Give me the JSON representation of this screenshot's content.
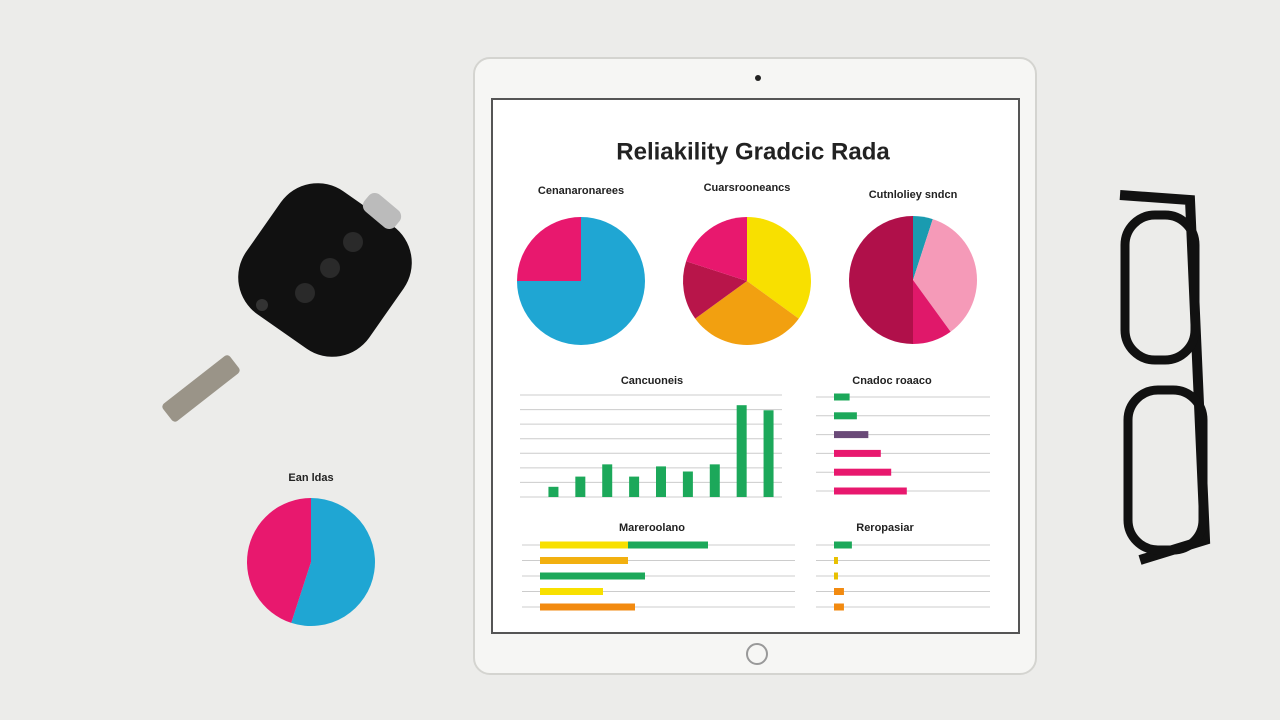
{
  "title": "Reliakility Gradcic Rada",
  "chart_data": [
    {
      "type": "pie",
      "title": "Cenanaronarees",
      "values": [
        75,
        25
      ],
      "colors": [
        "#1fa6d3",
        "#e8186e"
      ]
    },
    {
      "type": "pie",
      "title": "Cuarsrooneancs",
      "values": [
        35,
        30,
        15,
        20
      ],
      "colors": [
        "#f8e000",
        "#f2a010",
        "#b8154a",
        "#e8186e"
      ]
    },
    {
      "type": "pie",
      "title": "Cutnloliey sndcn",
      "values": [
        5,
        35,
        10,
        50
      ],
      "colors": [
        "#1a9bb0",
        "#f59ab8",
        "#e0186a",
        "#b0104a"
      ]
    },
    {
      "type": "bar",
      "title": "Cancuoneis",
      "values": [
        10,
        20,
        32,
        20,
        30,
        25,
        32,
        90,
        85
      ],
      "color": "#1ca85a",
      "ylim": [
        0,
        100
      ],
      "grid": true
    },
    {
      "type": "hbar",
      "title": "Cnadoc roaaco",
      "values": [
        15,
        22,
        33,
        45,
        55,
        70
      ],
      "colors": [
        "#1ca85a",
        "#1ca85a",
        "#6a4a78",
        "#e8186e",
        "#e8186e",
        "#e8186e"
      ],
      "xlim": [
        0,
        150
      ],
      "grid": true
    },
    {
      "type": "hbar",
      "title": "Mareroolano",
      "series": [
        {
          "values": [
            88,
            88,
            105,
            63,
            95
          ],
          "colors": [
            "#f8e000",
            "#f2b010",
            "#1ca85a",
            "#f8e000",
            "#f28a10"
          ]
        },
        {
          "values": [
            80,
            null,
            null,
            null,
            null
          ],
          "colors": [
            "#1ca85a",
            null,
            null,
            null,
            null
          ]
        }
      ],
      "xlim": [
        0,
        255
      ],
      "grid": true
    },
    {
      "type": "hbar",
      "title": "Reropasiar",
      "values": [
        18,
        4,
        4,
        10,
        10
      ],
      "colors": [
        "#1ca85a",
        "#e8c000",
        "#e8c000",
        "#f28a10",
        "#f28a10"
      ],
      "xlim": [
        0,
        157
      ],
      "grid": true
    },
    {
      "type": "pie",
      "title": "Ean ldas",
      "values": [
        55,
        45
      ],
      "colors": [
        "#1fa6d3",
        "#e8186e"
      ]
    }
  ]
}
